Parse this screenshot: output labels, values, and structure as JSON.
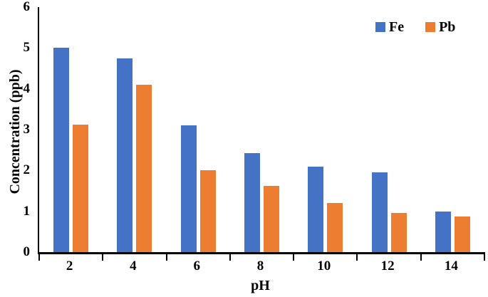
{
  "chart_data": {
    "type": "bar",
    "title": "",
    "xlabel": "pH",
    "ylabel": "Concentration (ppb)",
    "categories": [
      "2",
      "4",
      "6",
      "8",
      "10",
      "12",
      "14"
    ],
    "series": [
      {
        "name": "Fe",
        "color": "#4472C4",
        "values": [
          5.0,
          4.75,
          3.1,
          2.42,
          2.1,
          1.95,
          1.0
        ]
      },
      {
        "name": "Pb",
        "color": "#ED7D31",
        "values": [
          3.13,
          4.1,
          2.0,
          1.62,
          1.2,
          0.96,
          0.88
        ]
      }
    ],
    "ylim": [
      0,
      6
    ],
    "ytick_step": 1,
    "yticks": [
      "0",
      "1",
      "2",
      "3",
      "4",
      "5",
      "6"
    ],
    "grid": false,
    "legend_position": "top-right",
    "axis_color": "#000000",
    "text_color": "#000000"
  }
}
